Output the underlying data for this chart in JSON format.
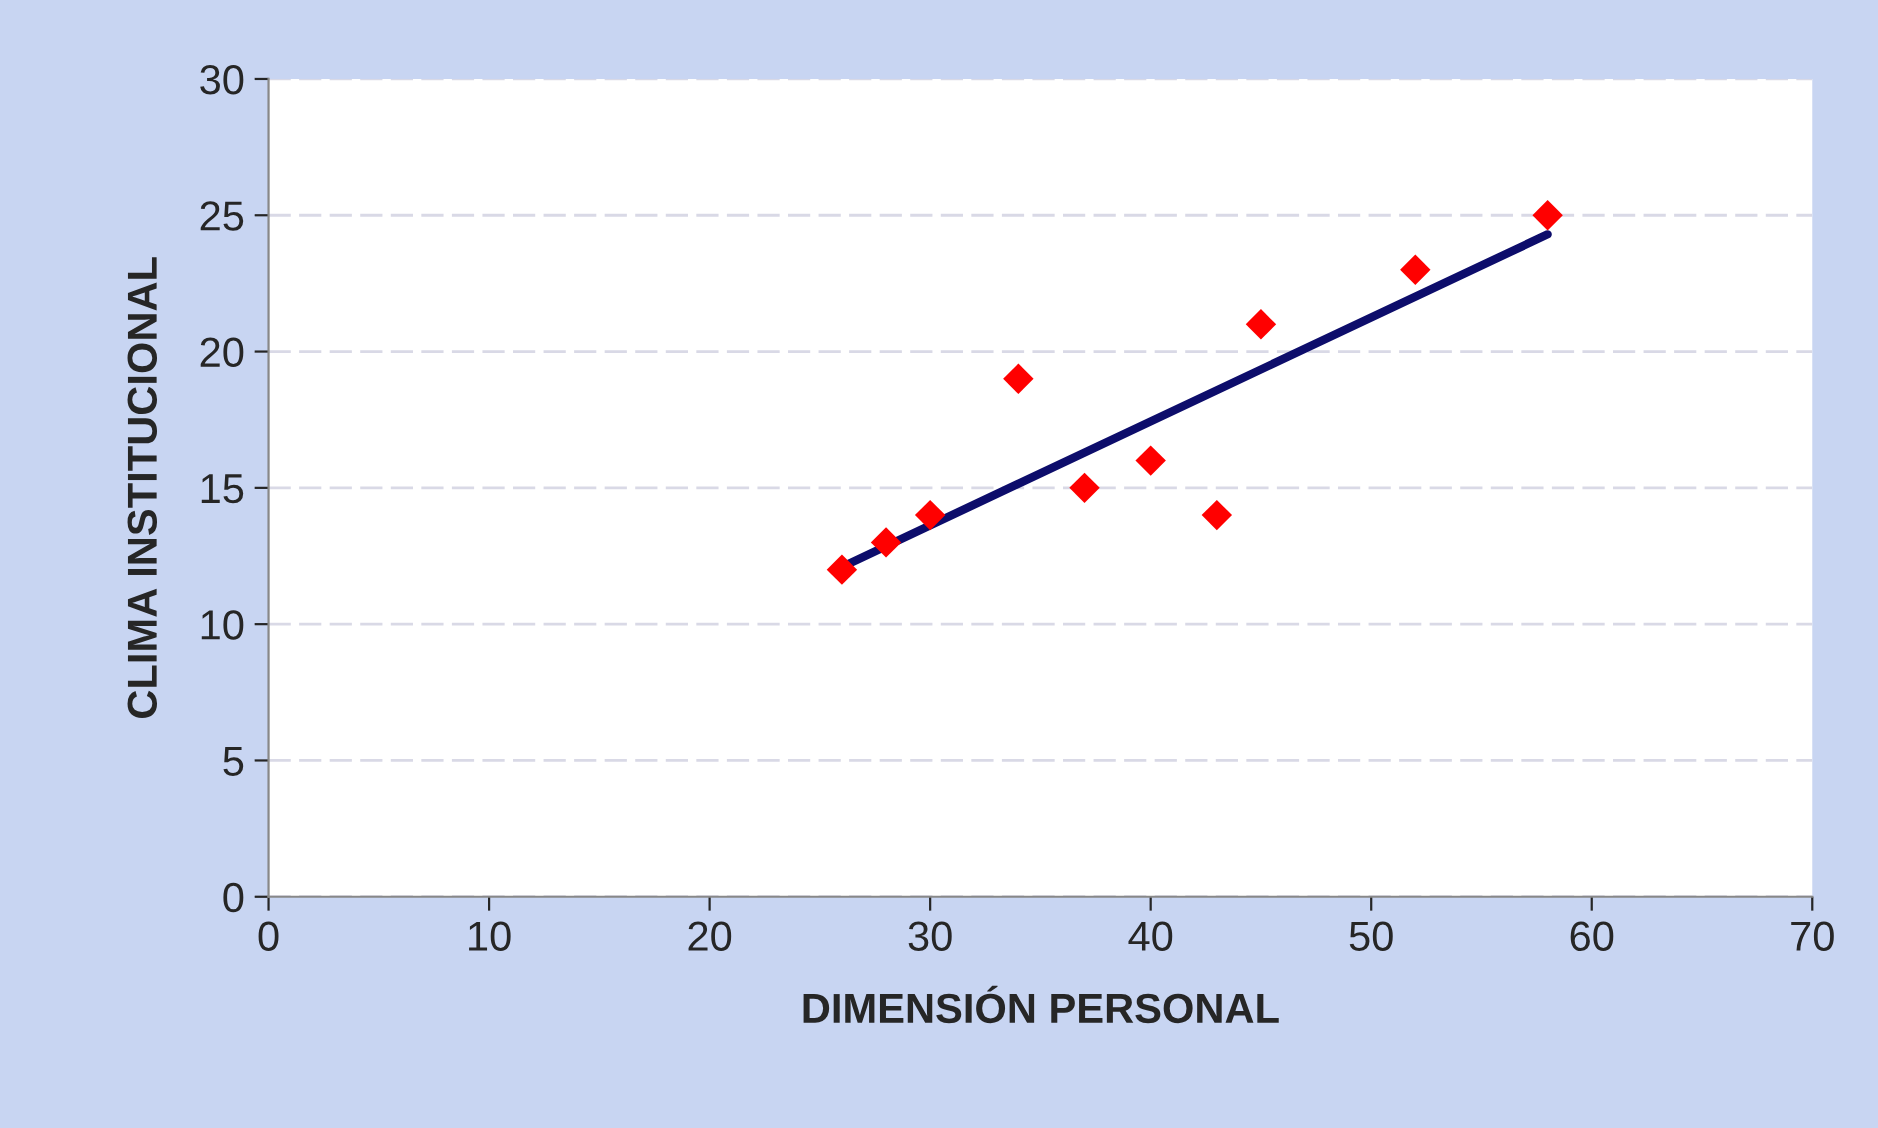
{
  "chart_data": {
    "type": "scatter",
    "xlabel": "DIMENSIÓN PERSONAL",
    "ylabel": "CLIMA INSTITUCIONAL",
    "xlim": [
      0,
      70
    ],
    "xticks": [
      0,
      10,
      20,
      30,
      40,
      50,
      60,
      70
    ],
    "ylim": [
      0,
      30
    ],
    "yticks": [
      0,
      5,
      10,
      15,
      20,
      25,
      30
    ],
    "grid": "y",
    "series": [
      {
        "type": "scatter",
        "color": "#ff0000",
        "marker": "diamond",
        "x": [
          26,
          28,
          30,
          34,
          37,
          40,
          43,
          45,
          52,
          58
        ],
        "values": [
          12,
          13,
          14,
          19,
          15,
          16,
          14,
          21,
          23,
          25
        ]
      },
      {
        "type": "line",
        "color": "#0d0d6b",
        "marker": "none",
        "line_style": "solid",
        "x": [
          26,
          58
        ],
        "values": [
          12.1,
          24.3
        ]
      }
    ]
  }
}
